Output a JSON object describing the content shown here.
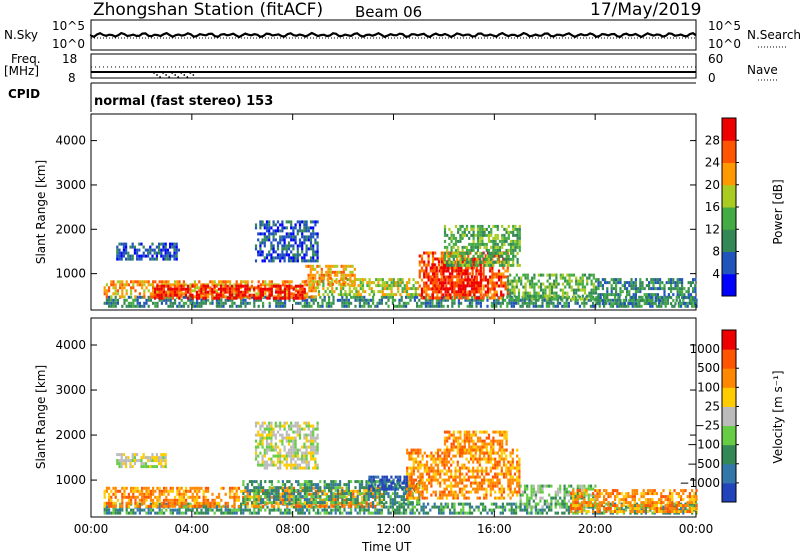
{
  "header": {
    "station": "Zhongshan Station (fitACF)",
    "beam": "Beam 06",
    "date": "17/May/2019",
    "mode": "normal (fast stereo) 153"
  },
  "strip": {
    "nsky_label": "N.Sky",
    "nsky_top": "10^5",
    "nsky_bottom": "10^0",
    "nsearch_label": "N.Search",
    "nsearch_top": "10^5",
    "nsearch_bottom": "10^0",
    "freq_label": "Freq.",
    "freq_unit": "[MHz]",
    "freq_top": "18",
    "freq_bottom": "8",
    "nave_label": "Nave",
    "nave_top": "60",
    "nave_bottom": "0",
    "cpid_label": "CPID"
  },
  "chart_data": [
    {
      "type": "heatmap",
      "name": "power",
      "ylabel": "Slant Range [km]",
      "xlabel": "",
      "xlim": [
        "00:00",
        "00:00"
      ],
      "x_ticks": [
        "00:00",
        "04:00",
        "08:00",
        "12:00",
        "16:00",
        "20:00",
        "00:00"
      ],
      "ylim": [
        180,
        4600
      ],
      "y_ticks": [
        1000,
        2000,
        3000,
        4000
      ],
      "colorbar": {
        "label": "Power [dB]",
        "ticks": [
          "4",
          "8",
          "12",
          "16",
          "20",
          "24",
          "28"
        ],
        "colors": [
          "#0000ff",
          "#2255bb",
          "#338855",
          "#44aa44",
          "#aacc22",
          "#ff9900",
          "#ff5500",
          "#ee0000"
        ]
      },
      "patches": [
        {
          "t0": 0.5,
          "t1": 24.0,
          "r0": 250,
          "r1": 500,
          "level": 2
        },
        {
          "t0": 0.5,
          "t1": 9.0,
          "r0": 500,
          "r1": 850,
          "level": 5
        },
        {
          "t0": 2.5,
          "t1": 8.5,
          "r0": 450,
          "r1": 750,
          "level": 7
        },
        {
          "t0": 9.0,
          "t1": 13.0,
          "r0": 500,
          "r1": 900,
          "level": 4
        },
        {
          "t0": 13.0,
          "t1": 16.5,
          "r0": 450,
          "r1": 1500,
          "level": 6
        },
        {
          "t0": 13.5,
          "t1": 15.5,
          "r0": 500,
          "r1": 1300,
          "level": 7
        },
        {
          "t0": 14.0,
          "t1": 17.0,
          "r0": 1200,
          "r1": 2100,
          "level": 3
        },
        {
          "t0": 16.5,
          "t1": 20.0,
          "r0": 400,
          "r1": 1000,
          "level": 3
        },
        {
          "t0": 20.0,
          "t1": 24.0,
          "r0": 300,
          "r1": 900,
          "level": 2
        },
        {
          "t0": 1.0,
          "t1": 3.5,
          "r0": 1300,
          "r1": 1700,
          "level": 1
        },
        {
          "t0": 6.5,
          "t1": 9.0,
          "r0": 1300,
          "r1": 2200,
          "level": 1
        },
        {
          "t0": 8.5,
          "t1": 10.5,
          "r0": 750,
          "r1": 1200,
          "level": 5
        }
      ]
    },
    {
      "type": "heatmap",
      "name": "velocity",
      "ylabel": "Slant Range [km]",
      "xlabel": "Time UT",
      "xlim": [
        "00:00",
        "00:00"
      ],
      "x_ticks": [
        "00:00",
        "04:00",
        "08:00",
        "12:00",
        "16:00",
        "20:00",
        "00:00"
      ],
      "ylim": [
        180,
        4600
      ],
      "y_ticks": [
        1000,
        2000,
        3000,
        4000
      ],
      "colorbar": {
        "label": "Velocity [m s⁻¹]",
        "ticks": [
          "1000",
          "500",
          "100",
          "25",
          "−25",
          "−100",
          "−500",
          "−1000"
        ],
        "colors": [
          "#2244bb",
          "#3377aa",
          "#338855",
          "#66cc44",
          "#bbbbbb",
          "#ffcc00",
          "#ff8800",
          "#ff5500",
          "#ee0000"
        ]
      },
      "patches": [
        {
          "t0": 0.5,
          "t1": 24.0,
          "r0": 250,
          "r1": 500,
          "level": 2
        },
        {
          "t0": 0.5,
          "t1": 11.5,
          "r0": 450,
          "r1": 850,
          "level": 6
        },
        {
          "t0": 6.0,
          "t1": 13.0,
          "r0": 500,
          "r1": 1000,
          "level": 2
        },
        {
          "t0": 12.5,
          "t1": 17.0,
          "r0": 600,
          "r1": 1700,
          "level": 6
        },
        {
          "t0": 14.0,
          "t1": 16.5,
          "r0": 1600,
          "r1": 2100,
          "level": 6
        },
        {
          "t0": 17.0,
          "t1": 20.0,
          "r0": 400,
          "r1": 900,
          "level": 3
        },
        {
          "t0": 19.0,
          "t1": 24.0,
          "r0": 300,
          "r1": 800,
          "level": 6
        },
        {
          "t0": 1.0,
          "t1": 3.0,
          "r0": 1300,
          "r1": 1600,
          "level": 4
        },
        {
          "t0": 6.5,
          "t1": 9.0,
          "r0": 1300,
          "r1": 2300,
          "level": 4
        },
        {
          "t0": 11.0,
          "t1": 12.5,
          "r0": 800,
          "r1": 1100,
          "level": 0
        }
      ]
    }
  ]
}
